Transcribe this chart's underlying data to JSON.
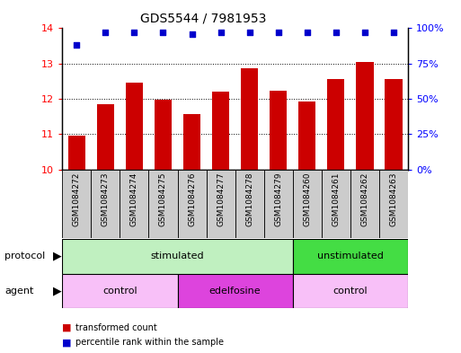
{
  "title": "GDS5544 / 7981953",
  "samples": [
    "GSM1084272",
    "GSM1084273",
    "GSM1084274",
    "GSM1084275",
    "GSM1084276",
    "GSM1084277",
    "GSM1084278",
    "GSM1084279",
    "GSM1084260",
    "GSM1084261",
    "GSM1084262",
    "GSM1084263"
  ],
  "bar_values": [
    10.97,
    11.85,
    12.47,
    11.98,
    11.58,
    12.2,
    12.87,
    12.22,
    11.93,
    12.56,
    13.04,
    12.55
  ],
  "percentile_values": [
    88,
    97,
    97,
    97,
    96,
    97,
    97,
    97,
    97,
    97,
    97,
    97
  ],
  "ylim": [
    10,
    14
  ],
  "y2lim": [
    0,
    100
  ],
  "bar_color": "#cc0000",
  "dot_color": "#0000cc",
  "protocol_stim_color": "#c0f0c0",
  "protocol_unstim_color": "#44dd44",
  "agent_control_color": "#f8c0f8",
  "agent_edel_color": "#dd44dd",
  "legend_bar_label": "transformed count",
  "legend_dot_label": "percentile rank within the sample",
  "yticks": [
    10,
    11,
    12,
    13,
    14
  ],
  "y2ticks": [
    0,
    25,
    50,
    75,
    100
  ],
  "y2ticklabels": [
    "0%",
    "25%",
    "50%",
    "75%",
    "100%"
  ],
  "bg_color": "#ffffff",
  "title_fontsize": 10,
  "tick_fontsize": 8,
  "label_fontsize": 8,
  "sample_fontsize": 6.5
}
